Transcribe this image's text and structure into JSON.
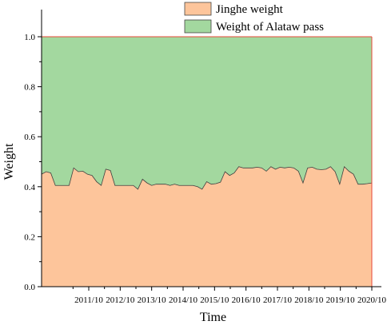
{
  "chart_data": {
    "type": "area",
    "stacked": true,
    "title": "",
    "xlabel": "Time",
    "ylabel": "Weight",
    "ylim": [
      0,
      1.0
    ],
    "yticks": [
      "0.0",
      "0.2",
      "0.4",
      "0.6",
      "0.8",
      "1.0"
    ],
    "xticks": [
      "2011/10",
      "2012/10",
      "2013/10",
      "2014/10",
      "2015/10",
      "2016/10",
      "2017/10",
      "2018/10",
      "2019/10",
      "2020/10"
    ],
    "x_range": [
      "2010/04",
      "2020/10"
    ],
    "legend_position": "top-right",
    "grid": false,
    "series": [
      {
        "name": "Jinghe weight",
        "color": "#FDC59B",
        "values": [
          0.45,
          0.46,
          0.455,
          0.405,
          0.405,
          0.405,
          0.405,
          0.475,
          0.46,
          0.462,
          0.45,
          0.445,
          0.42,
          0.405,
          0.47,
          0.465,
          0.405,
          0.405,
          0.405,
          0.405,
          0.405,
          0.39,
          0.43,
          0.415,
          0.405,
          0.41,
          0.41,
          0.41,
          0.405,
          0.41,
          0.405,
          0.405,
          0.405,
          0.405,
          0.4,
          0.39,
          0.42,
          0.41,
          0.412,
          0.418,
          0.46,
          0.445,
          0.455,
          0.48,
          0.475,
          0.475,
          0.475,
          0.478,
          0.475,
          0.462,
          0.48,
          0.47,
          0.478,
          0.475,
          0.478,
          0.475,
          0.462,
          0.415,
          0.475,
          0.478,
          0.47,
          0.468,
          0.47,
          0.48,
          0.46,
          0.41,
          0.48,
          0.462,
          0.45,
          0.41,
          0.41,
          0.412,
          0.415
        ]
      },
      {
        "name": "Weight of Alataw pass",
        "color": "#A3D89F",
        "values": [
          0.55,
          0.54,
          0.545,
          0.595,
          0.595,
          0.595,
          0.595,
          0.525,
          0.54,
          0.538,
          0.55,
          0.555,
          0.58,
          0.595,
          0.53,
          0.535,
          0.595,
          0.595,
          0.595,
          0.595,
          0.595,
          0.61,
          0.57,
          0.585,
          0.595,
          0.59,
          0.59,
          0.59,
          0.595,
          0.59,
          0.595,
          0.595,
          0.595,
          0.595,
          0.6,
          0.61,
          0.58,
          0.59,
          0.588,
          0.582,
          0.54,
          0.555,
          0.545,
          0.52,
          0.525,
          0.525,
          0.525,
          0.522,
          0.525,
          0.538,
          0.52,
          0.53,
          0.522,
          0.525,
          0.522,
          0.525,
          0.538,
          0.585,
          0.525,
          0.522,
          0.53,
          0.532,
          0.53,
          0.52,
          0.54,
          0.59,
          0.52,
          0.538,
          0.55,
          0.59,
          0.59,
          0.588,
          0.585
        ]
      }
    ]
  }
}
